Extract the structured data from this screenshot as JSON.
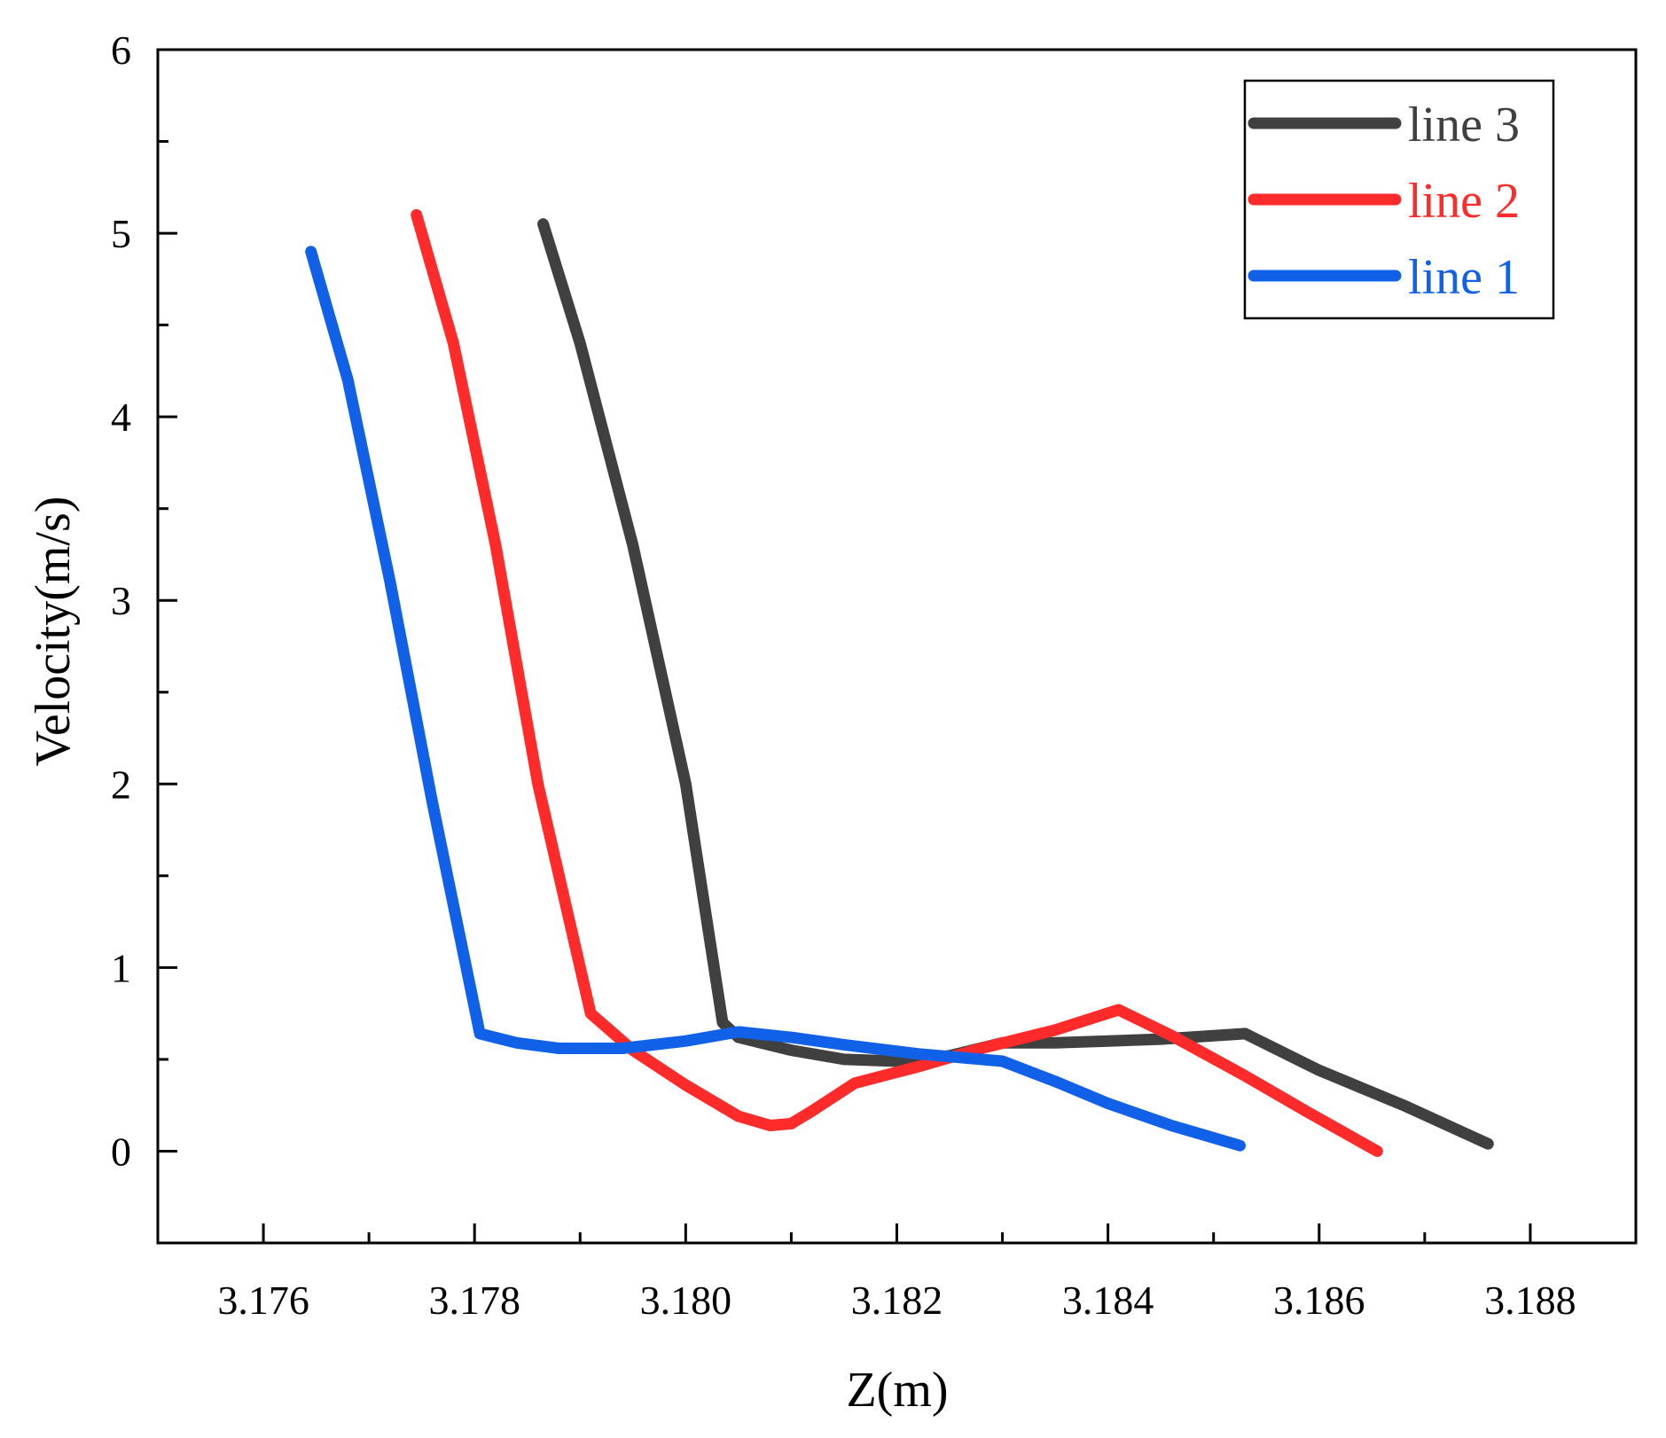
{
  "chart_data": {
    "type": "line",
    "title": "",
    "xlabel": "Z(m)",
    "ylabel": "Velocity(m/s)",
    "xlim": [
      3.175,
      3.189
    ],
    "ylim": [
      -0.5,
      6
    ],
    "xticks": [
      3.176,
      3.178,
      3.18,
      3.182,
      3.184,
      3.186,
      3.188
    ],
    "xtick_labels": [
      "3.176",
      "3.178",
      "3.180",
      "3.182",
      "3.184",
      "3.186",
      "3.188"
    ],
    "yticks": [
      0,
      1,
      2,
      3,
      4,
      5,
      6
    ],
    "ytick_labels": [
      "0",
      "1",
      "2",
      "3",
      "4",
      "5",
      "6"
    ],
    "grid": false,
    "legend_position": "top-right",
    "series": [
      {
        "name": "line 3",
        "color": "#404040",
        "x": [
          3.17865,
          3.179,
          3.1795,
          3.18,
          3.18035,
          3.1805,
          3.181,
          3.1815,
          3.182,
          3.1825,
          3.183,
          3.1835,
          3.184,
          3.1845,
          3.1853,
          3.186,
          3.1868,
          3.1876
        ],
        "y": [
          5.05,
          4.4,
          3.3,
          2.0,
          0.7,
          0.62,
          0.55,
          0.5,
          0.49,
          0.52,
          0.59,
          0.59,
          0.6,
          0.61,
          0.64,
          0.44,
          0.25,
          0.04
        ]
      },
      {
        "name": "line 2",
        "color": "#ff2a2a",
        "x": [
          3.17745,
          3.1778,
          3.1782,
          3.1786,
          3.1791,
          3.1795,
          3.18,
          3.1805,
          3.1808,
          3.181,
          3.1812,
          3.1816,
          3.1822,
          3.1828,
          3.1835,
          3.1841,
          3.1846,
          3.1853,
          3.1859,
          3.18655
        ],
        "y": [
          5.1,
          4.4,
          3.3,
          2.0,
          0.75,
          0.55,
          0.36,
          0.19,
          0.14,
          0.15,
          0.22,
          0.37,
          0.46,
          0.56,
          0.66,
          0.77,
          0.63,
          0.41,
          0.21,
          0.0
        ]
      },
      {
        "name": "line 1",
        "color": "#1060e8",
        "x": [
          3.17645,
          3.1768,
          3.1772,
          3.1776,
          3.17805,
          3.1784,
          3.1788,
          3.1794,
          3.18,
          3.1805,
          3.181,
          3.1815,
          3.1822,
          3.183,
          3.1835,
          3.184,
          3.1846,
          3.18525
        ],
        "y": [
          4.9,
          4.2,
          3.1,
          1.9,
          0.64,
          0.59,
          0.56,
          0.56,
          0.6,
          0.65,
          0.62,
          0.58,
          0.53,
          0.49,
          0.38,
          0.26,
          0.14,
          0.03
        ]
      }
    ]
  }
}
